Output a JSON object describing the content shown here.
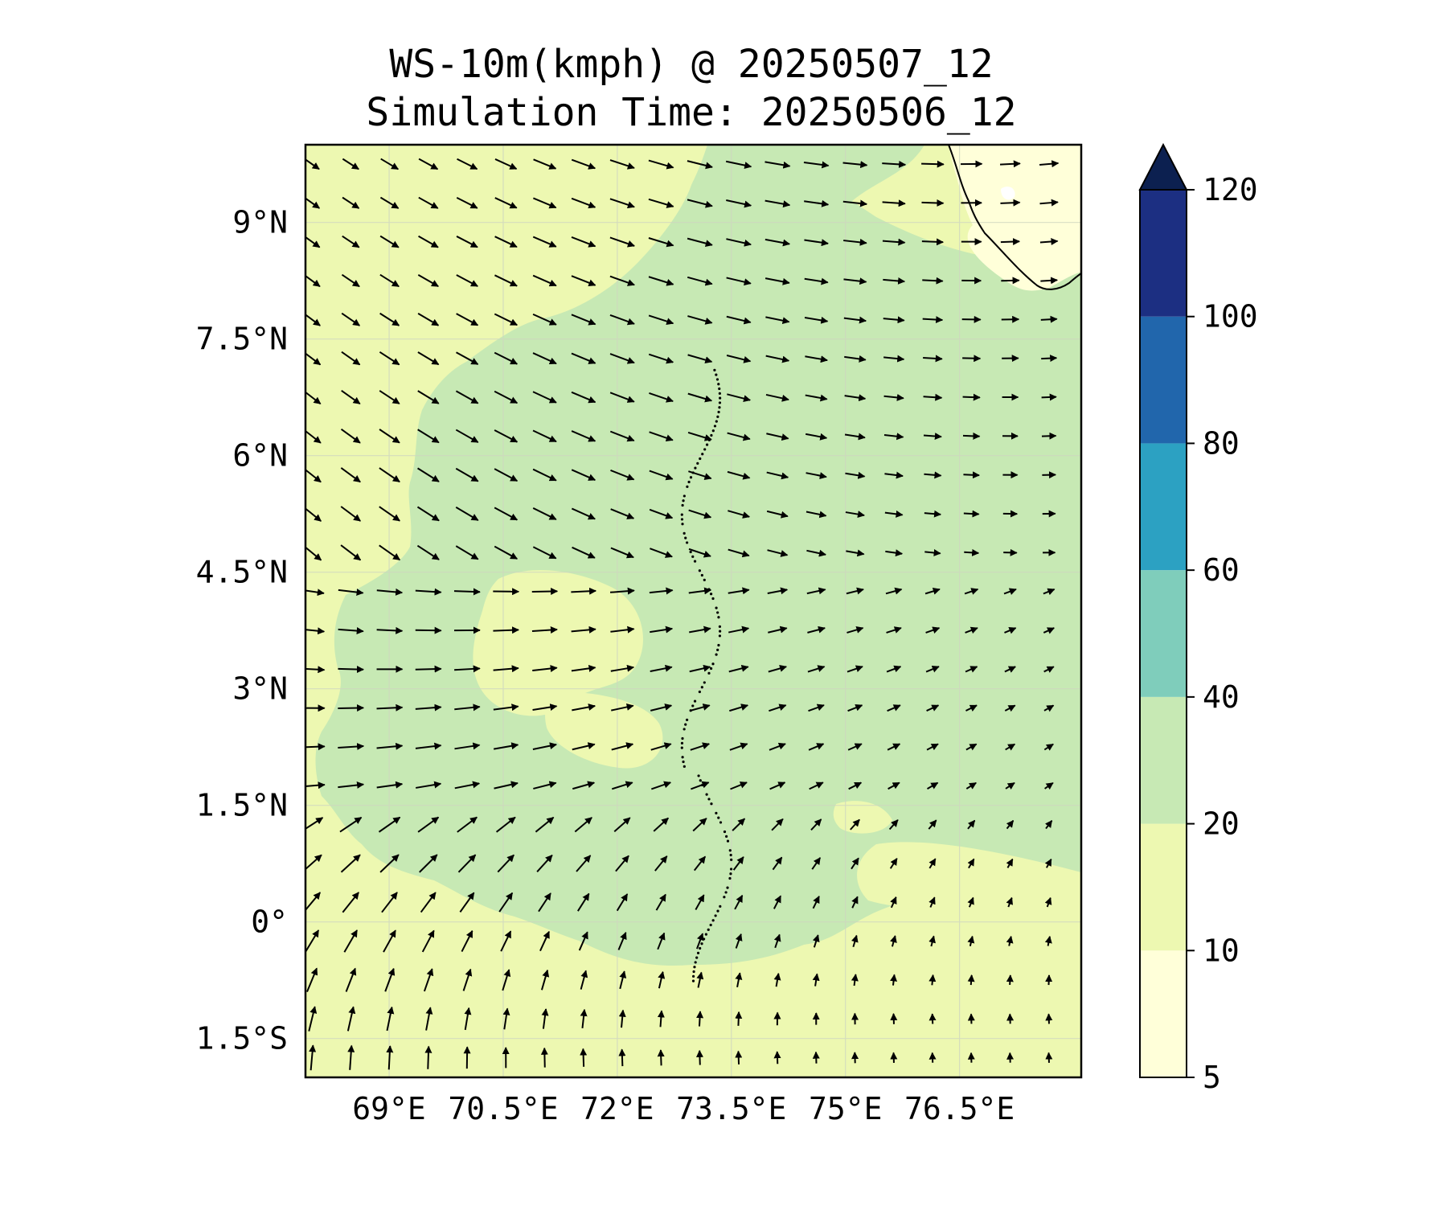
{
  "title": {
    "line1": "WS-10m(kmph) @ 20250507_12",
    "line2": "Simulation Time: 20250506_12"
  },
  "map": {
    "lon_range_deg": [
      67.9,
      78.1
    ],
    "lat_range_deg": [
      -2.0,
      10.0
    ],
    "x_ticks": [
      {
        "value": 69.0,
        "label": "69°E"
      },
      {
        "value": 70.5,
        "label": "70.5°E"
      },
      {
        "value": 72.0,
        "label": "72°E"
      },
      {
        "value": 73.5,
        "label": "73.5°E"
      },
      {
        "value": 75.0,
        "label": "75°E"
      },
      {
        "value": 76.5,
        "label": "76.5°E"
      }
    ],
    "y_ticks": [
      {
        "value": 9.0,
        "label": "9°N"
      },
      {
        "value": 7.5,
        "label": "7.5°N"
      },
      {
        "value": 6.0,
        "label": "6°N"
      },
      {
        "value": 4.5,
        "label": "4.5°N"
      },
      {
        "value": 3.0,
        "label": "3°N"
      },
      {
        "value": 1.5,
        "label": "1.5°N"
      },
      {
        "value": 0.0,
        "label": "0°"
      },
      {
        "value": -1.5,
        "label": "1.5°S"
      }
    ],
    "gridlines": true,
    "colors": {
      "band_5_10": "#ffffd9",
      "band_10_20": "#edf8b1",
      "band_20_40": "#c7e9b4",
      "coastline": "#000000",
      "vectors": "#000000"
    },
    "wind_field_description": "easterly/westerly flow converging toward east; northwesterlies in north-west, southwesterlies in south"
  },
  "colorbar": {
    "levels": [
      5,
      10,
      20,
      40,
      60,
      80,
      100,
      120
    ],
    "labels": [
      "5",
      "10",
      "20",
      "40",
      "60",
      "80",
      "100",
      "120"
    ],
    "colors": [
      "#ffffd9",
      "#edf8b1",
      "#c7e9b4",
      "#7fcdbb",
      "#2ca1c2",
      "#2166ac",
      "#1c2f82"
    ],
    "extend_color": "#0c2050",
    "extend": "max"
  }
}
